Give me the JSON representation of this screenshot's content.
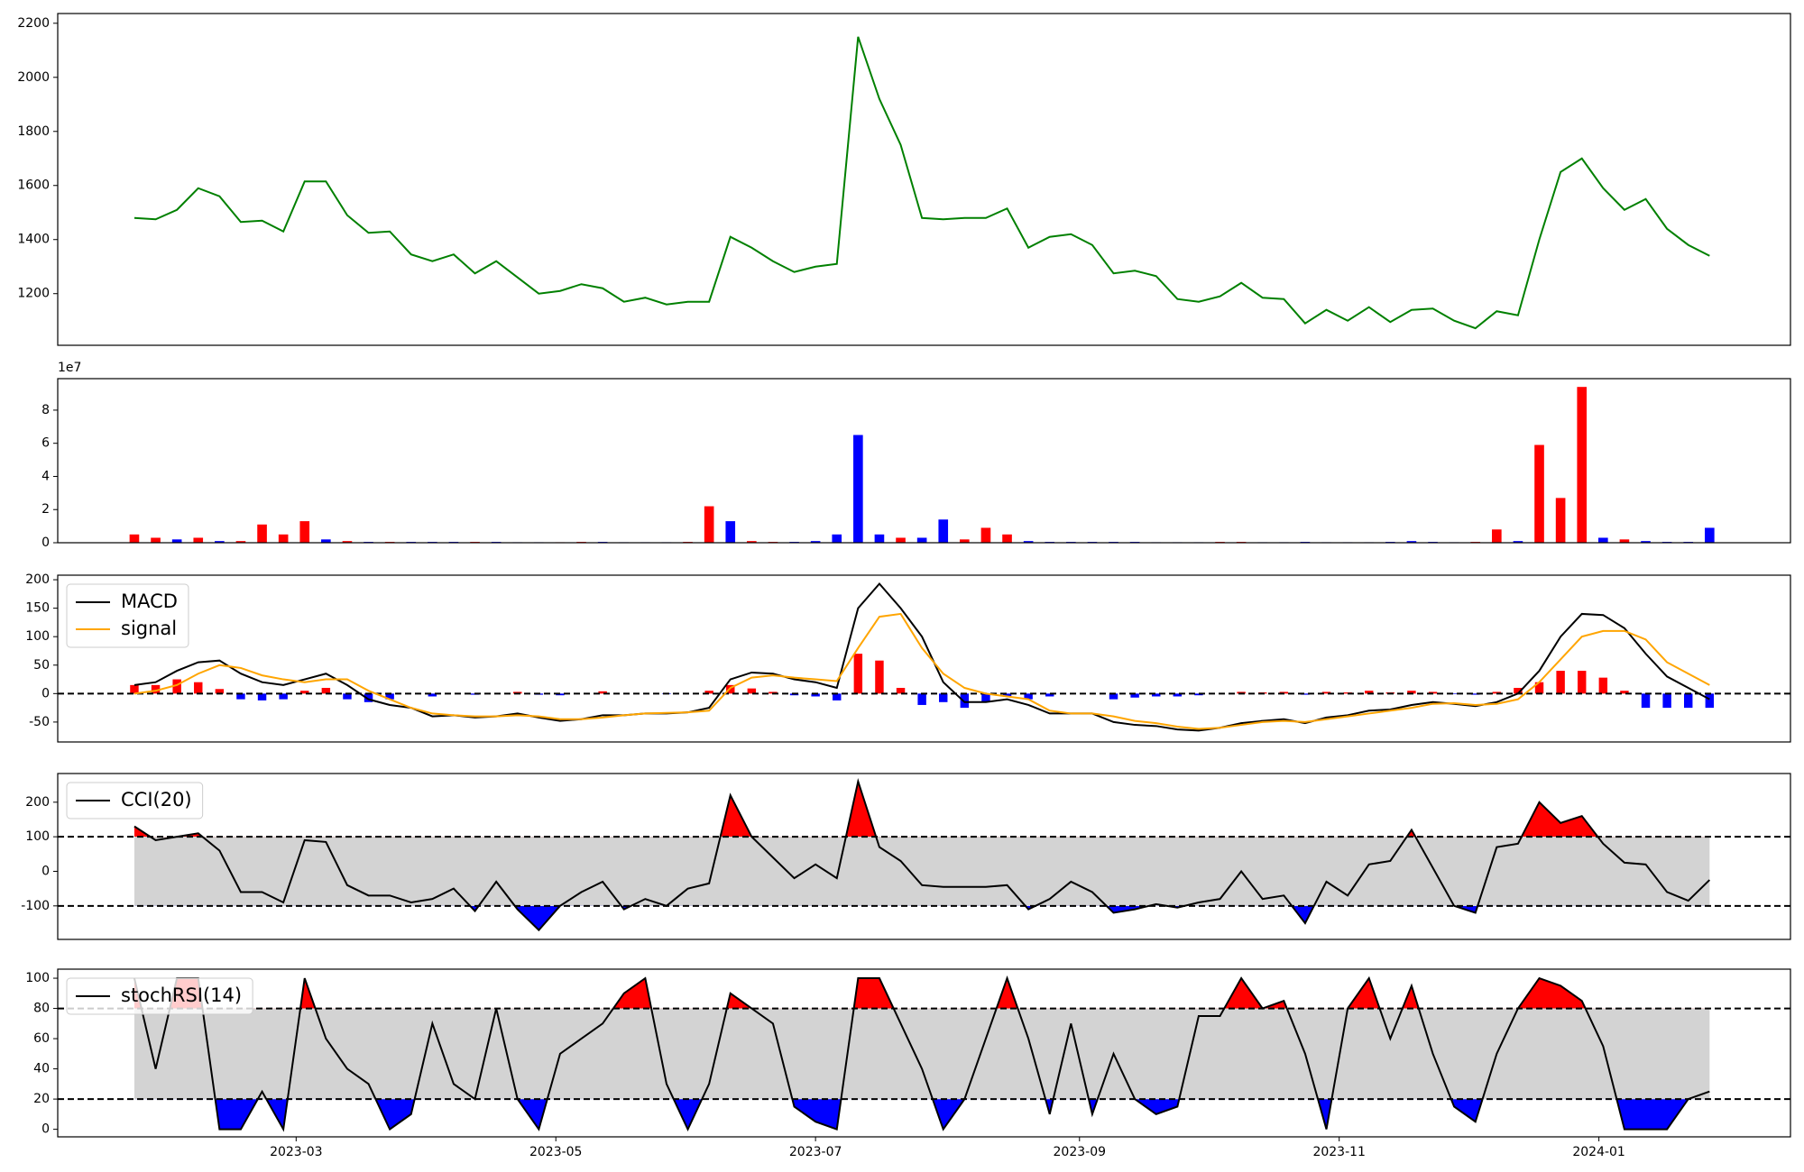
{
  "chart_data": [
    {
      "type": "line",
      "color": "green",
      "values": [
        1480,
        1475,
        1510,
        1590,
        1560,
        1465,
        1470,
        1430,
        1615,
        1615,
        1490,
        1425,
        1430,
        1345,
        1320,
        1345,
        1275,
        1320,
        1260,
        1200,
        1210,
        1235,
        1220,
        1170,
        1185,
        1160,
        1170,
        1170,
        1410,
        1370,
        1320,
        1280,
        1300,
        1310,
        2150,
        1920,
        1750,
        1480,
        1475,
        1480,
        1480,
        1515,
        1370,
        1410,
        1420,
        1380,
        1275,
        1285,
        1265,
        1180,
        1170,
        1190,
        1240,
        1185,
        1180,
        1090,
        1140,
        1100,
        1150,
        1095,
        1140,
        1145,
        1100,
        1072,
        1135,
        1120,
        1400,
        1650,
        1700,
        1590,
        1510,
        1550,
        1440,
        1380,
        1340
      ],
      "ylim": [
        1009,
        2236
      ],
      "yticks": [
        1200,
        1400,
        1600,
        1800,
        2000,
        2200
      ]
    },
    {
      "type": "bar",
      "offset_label": "1e7",
      "values": [
        0.5,
        0.3,
        0.2,
        0.3,
        0.1,
        0.1,
        1.1,
        0.5,
        1.3,
        0.2,
        0.1,
        0.05,
        0.05,
        0.05,
        0.05,
        0.05,
        0.05,
        0.05,
        0.03,
        0.03,
        0.03,
        0.05,
        0.05,
        0.03,
        0.03,
        0.03,
        0.05,
        2.2,
        1.3,
        0.1,
        0.05,
        0.05,
        0.1,
        0.5,
        6.5,
        0.5,
        0.3,
        0.3,
        1.4,
        0.2,
        0.9,
        0.5,
        0.1,
        0.05,
        0.05,
        0.05,
        0.05,
        0.05,
        0.03,
        0.03,
        0.03,
        0.05,
        0.05,
        0.03,
        0.03,
        0.05,
        0.03,
        0.03,
        0.03,
        0.05,
        0.1,
        0.05,
        0.03,
        0.05,
        0.8,
        0.1,
        5.9,
        2.7,
        9.4,
        0.3,
        0.2,
        0.1,
        0.05,
        0.05,
        0.9
      ],
      "colors": [
        "red",
        "red",
        "blue",
        "red",
        "blue",
        "red",
        "red",
        "red",
        "red",
        "blue",
        "red",
        "blue",
        "red",
        "blue",
        "blue",
        "blue",
        "red",
        "blue",
        "blue",
        "blue",
        "red",
        "red",
        "blue",
        "blue",
        "blue",
        "blue",
        "red",
        "red",
        "blue",
        "red",
        "red",
        "blue",
        "blue",
        "blue",
        "blue",
        "blue",
        "red",
        "blue",
        "blue",
        "red",
        "red",
        "red",
        "blue",
        "blue",
        "blue",
        "blue",
        "blue",
        "blue",
        "blue",
        "blue",
        "blue",
        "red",
        "red",
        "blue",
        "blue",
        "blue",
        "blue",
        "blue",
        "blue",
        "blue",
        "blue",
        "blue",
        "blue",
        "red",
        "red",
        "blue",
        "red",
        "red",
        "red",
        "blue",
        "red",
        "blue",
        "blue",
        "blue",
        "blue"
      ],
      "ylim": [
        0,
        9.9
      ],
      "yticks": [
        0,
        2,
        4,
        6,
        8
      ]
    },
    {
      "type": "macd",
      "legend": "upper left",
      "hline": 0,
      "series": [
        {
          "name": "MACD",
          "color": "black",
          "values": [
            15,
            20,
            40,
            55,
            58,
            35,
            20,
            15,
            25,
            35,
            15,
            -10,
            -20,
            -25,
            -40,
            -38,
            -42,
            -40,
            -35,
            -42,
            -48,
            -45,
            -38,
            -38,
            -35,
            -35,
            -33,
            -25,
            25,
            37,
            35,
            25,
            20,
            10,
            150,
            193,
            150,
            100,
            20,
            -15,
            -15,
            -10,
            -20,
            -35,
            -35,
            -35,
            -50,
            -55,
            -57,
            -63,
            -65,
            -60,
            -52,
            -48,
            -45,
            -52,
            -42,
            -38,
            -30,
            -28,
            -20,
            -15,
            -18,
            -22,
            -15,
            0,
            40,
            100,
            140,
            138,
            115,
            70,
            30,
            10,
            -10
          ]
        },
        {
          "name": "signal",
          "color": "orange",
          "values": [
            0,
            5,
            15,
            35,
            50,
            45,
            32,
            25,
            20,
            25,
            25,
            5,
            -10,
            -25,
            -35,
            -38,
            -40,
            -40,
            -38,
            -40,
            -45,
            -45,
            -42,
            -38,
            -35,
            -34,
            -33,
            -30,
            10,
            28,
            32,
            28,
            25,
            22,
            80,
            135,
            140,
            80,
            35,
            10,
            0,
            -5,
            -10,
            -30,
            -35,
            -35,
            -40,
            -48,
            -52,
            -58,
            -62,
            -60,
            -55,
            -50,
            -48,
            -50,
            -45,
            -40,
            -35,
            -30,
            -25,
            -18,
            -17,
            -20,
            -18,
            -10,
            20,
            60,
            100,
            110,
            110,
            95,
            55,
            35,
            15
          ]
        }
      ],
      "histogram": {
        "pos_color": "red",
        "neg_color": "blue",
        "values": [
          15,
          15,
          25,
          20,
          8,
          -10,
          -12,
          -10,
          5,
          10,
          -10,
          -15,
          -10,
          0,
          -5,
          0,
          -2,
          0,
          3,
          -2,
          -3,
          0,
          4,
          0,
          0,
          -1,
          0,
          5,
          15,
          9,
          3,
          -3,
          -5,
          -12,
          70,
          58,
          10,
          -20,
          -15,
          -25,
          -15,
          -5,
          -10,
          -5,
          0,
          0,
          -10,
          -7,
          -5,
          -5,
          -3,
          0,
          3,
          2,
          3,
          -2,
          3,
          2,
          5,
          2,
          5,
          3,
          -1,
          -2,
          3,
          10,
          20,
          40,
          40,
          28,
          5,
          -25,
          -25,
          -25,
          -25
        ]
      },
      "ylim": [
        -85,
        208
      ],
      "yticks": [
        -50,
        0,
        50,
        100,
        150,
        200
      ]
    },
    {
      "type": "band",
      "legend": "upper left",
      "bands": [
        -100,
        100
      ],
      "band_color": "lightgray",
      "high_color": "red",
      "low_color": "blue",
      "series": [
        {
          "name": "CCI(20)",
          "color": "black",
          "values": [
            130,
            90,
            100,
            110,
            60,
            -60,
            -60,
            -90,
            90,
            85,
            -40,
            -70,
            -70,
            -90,
            -80,
            -50,
            -115,
            -30,
            -110,
            -170,
            -100,
            -60,
            -30,
            -110,
            -80,
            -100,
            -50,
            -35,
            220,
            100,
            40,
            -20,
            20,
            -20,
            260,
            70,
            30,
            -40,
            -45,
            -45,
            -45,
            -40,
            -110,
            -80,
            -30,
            -60,
            -120,
            -110,
            -95,
            -105,
            -90,
            -80,
            0,
            -80,
            -70,
            -150,
            -30,
            -70,
            20,
            30,
            120,
            10,
            -100,
            -120,
            70,
            80,
            200,
            140,
            160,
            80,
            25,
            20,
            -60,
            -85,
            -25
          ]
        }
      ],
      "ylim": [
        -197,
        283
      ],
      "yticks": [
        -100,
        0,
        100,
        200
      ]
    },
    {
      "type": "band",
      "legend": "upper left",
      "bands": [
        20,
        80
      ],
      "band_color": "lightgray",
      "high_color": "red",
      "low_color": "blue",
      "series": [
        {
          "name": "stochRSI(14)",
          "color": "black",
          "values": [
            100,
            40,
            100,
            100,
            0,
            0,
            25,
            0,
            100,
            60,
            40,
            30,
            0,
            10,
            70,
            30,
            20,
            80,
            20,
            0,
            50,
            60,
            70,
            90,
            100,
            30,
            0,
            30,
            90,
            80,
            70,
            15,
            5,
            0,
            100,
            100,
            70,
            40,
            0,
            20,
            60,
            100,
            60,
            10,
            70,
            10,
            50,
            20,
            10,
            15,
            75,
            75,
            100,
            80,
            85,
            50,
            0,
            80,
            100,
            60,
            95,
            50,
            15,
            5,
            50,
            80,
            100,
            95,
            85,
            55,
            0,
            0,
            0,
            20,
            25
          ]
        }
      ],
      "ylim": [
        -5,
        106
      ],
      "yticks": [
        0,
        20,
        40,
        60,
        80,
        100
      ],
      "x": [
        19379,
        19384,
        19389,
        19394,
        19399,
        19404,
        19409,
        19414,
        19419,
        19424,
        19429,
        19434,
        19439,
        19444,
        19449,
        19454,
        19459,
        19464,
        19469,
        19474,
        19479,
        19484,
        19489,
        19494,
        19499,
        19504,
        19509,
        19514,
        19519,
        19524,
        19529,
        19534,
        19539,
        19544,
        19549,
        19554,
        19559,
        19564,
        19569,
        19574,
        19579,
        19584,
        19589,
        19594,
        19599,
        19604,
        19609,
        19614,
        19619,
        19624,
        19629,
        19634,
        19639,
        19644,
        19649,
        19654,
        19659,
        19664,
        19669,
        19674,
        19679,
        19684,
        19689,
        19694,
        19699,
        19704,
        19709,
        19714,
        19719,
        19724,
        19729,
        19734,
        19739,
        19744,
        19749
      ],
      "xlim": [
        19361,
        19768
      ],
      "xticks": [
        {
          "value": 19417,
          "label": "2023-03"
        },
        {
          "value": 19478,
          "label": "2023-05"
        },
        {
          "value": 19539,
          "label": "2023-07"
        },
        {
          "value": 19601,
          "label": "2023-09"
        },
        {
          "value": 19662,
          "label": "2023-11"
        },
        {
          "value": 19723,
          "label": "2024-01"
        }
      ]
    }
  ]
}
